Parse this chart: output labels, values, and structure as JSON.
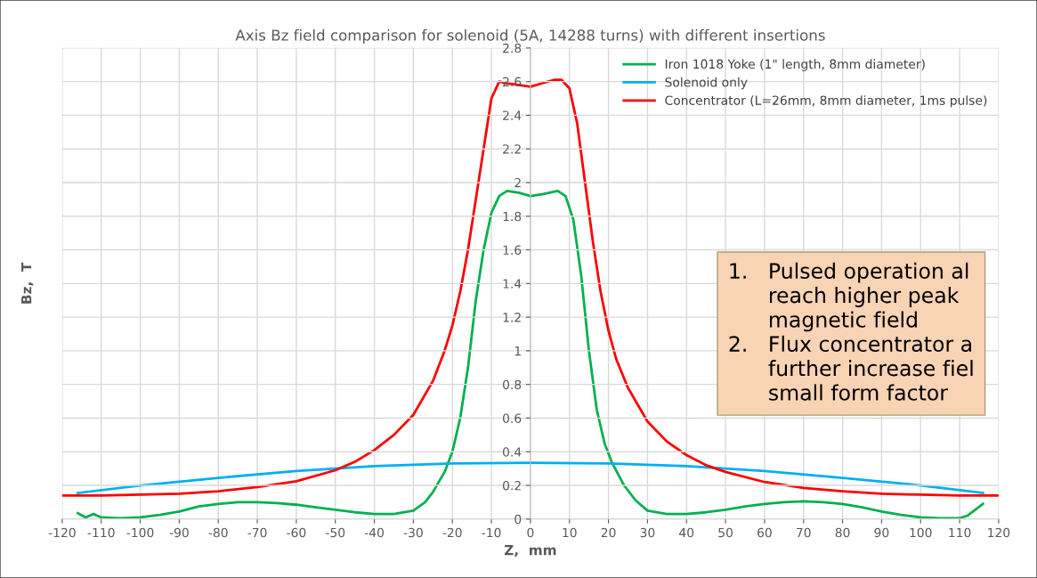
{
  "chart_data": {
    "type": "line",
    "title": "Axis Bz field comparison for solenoid (5A, 14288 turns) with different insertions",
    "xlabel": "Z,  mm",
    "ylabel": "Bz,  T",
    "xlim": [
      -120,
      120
    ],
    "xticks": [
      -120,
      -110,
      -100,
      -90,
      -80,
      -70,
      -60,
      -50,
      -40,
      -30,
      -20,
      -10,
      0,
      10,
      20,
      30,
      40,
      50,
      60,
      70,
      80,
      90,
      100,
      110,
      120
    ],
    "ylim": [
      0,
      2.8
    ],
    "yticks": [
      0,
      0.2,
      0.4,
      0.6,
      0.8,
      1,
      1.2,
      1.4,
      1.6,
      1.8,
      2,
      2.2,
      2.4,
      2.6,
      2.8
    ],
    "grid": true,
    "legend": "top right",
    "marker": "none",
    "line_style": "solid",
    "series": [
      {
        "name": "Iron 1018 Yoke (1\" length, 8mm diameter)",
        "color": "#00b050",
        "x": [
          -116,
          -114,
          -112,
          -110,
          -105,
          -100,
          -95,
          -90,
          -85,
          -80,
          -75,
          -70,
          -65,
          -60,
          -55,
          -50,
          -45,
          -40,
          -35,
          -30,
          -27,
          -25,
          -22,
          -20,
          -18,
          -16,
          -14,
          -12,
          -10,
          -8,
          -6,
          -3,
          0,
          3,
          7,
          9,
          11,
          13,
          15,
          17,
          19,
          21,
          24,
          27,
          30,
          35,
          40,
          45,
          50,
          55,
          60,
          65,
          70,
          75,
          80,
          85,
          90,
          95,
          100,
          105,
          110,
          112,
          114,
          116
        ],
        "values": [
          0.035,
          0.01,
          0.03,
          0.01,
          0.005,
          0.01,
          0.025,
          0.045,
          0.075,
          0.09,
          0.1,
          0.1,
          0.095,
          0.085,
          0.07,
          0.055,
          0.04,
          0.03,
          0.03,
          0.05,
          0.1,
          0.16,
          0.28,
          0.4,
          0.6,
          0.9,
          1.3,
          1.6,
          1.82,
          1.92,
          1.95,
          1.94,
          1.92,
          1.93,
          1.95,
          1.92,
          1.78,
          1.45,
          1.0,
          0.65,
          0.45,
          0.33,
          0.2,
          0.11,
          0.05,
          0.03,
          0.03,
          0.04,
          0.055,
          0.075,
          0.09,
          0.1,
          0.105,
          0.1,
          0.09,
          0.07,
          0.045,
          0.025,
          0.01,
          0.005,
          0.005,
          0.02,
          0.055,
          0.09
        ]
      },
      {
        "name": "Solenoid only",
        "color": "#00b0f0",
        "x": [
          -116,
          -100,
          -80,
          -60,
          -40,
          -20,
          0,
          20,
          40,
          60,
          80,
          100,
          116
        ],
        "values": [
          0.155,
          0.2,
          0.245,
          0.285,
          0.315,
          0.33,
          0.335,
          0.33,
          0.315,
          0.285,
          0.245,
          0.2,
          0.155
        ]
      },
      {
        "name": "Concentrator (L=26mm, 8mm diameter, 1ms pulse)",
        "color": "#ff0000",
        "x": [
          -120,
          -110,
          -100,
          -90,
          -80,
          -70,
          -60,
          -50,
          -45,
          -40,
          -35,
          -30,
          -25,
          -22,
          -20,
          -18,
          -16,
          -14,
          -12,
          -10,
          -8,
          -6,
          -3,
          0,
          3,
          6,
          8,
          10,
          12,
          14,
          16,
          18,
          20,
          22,
          25,
          30,
          35,
          40,
          45,
          50,
          60,
          70,
          80,
          90,
          100,
          110,
          120
        ],
        "values": [
          0.14,
          0.14,
          0.145,
          0.15,
          0.165,
          0.19,
          0.225,
          0.29,
          0.34,
          0.41,
          0.5,
          0.62,
          0.82,
          1.0,
          1.15,
          1.35,
          1.6,
          1.9,
          2.2,
          2.5,
          2.6,
          2.59,
          2.58,
          2.57,
          2.59,
          2.61,
          2.61,
          2.56,
          2.35,
          2.0,
          1.65,
          1.35,
          1.12,
          0.95,
          0.78,
          0.58,
          0.46,
          0.38,
          0.32,
          0.28,
          0.22,
          0.185,
          0.165,
          0.15,
          0.145,
          0.14,
          0.14
        ]
      }
    ],
    "annotations": [
      "1.   Pulsed operation al\n      reach higher peak\n      magnetic field\n2.   Flux concentrator a\n      further increase fiel\n      small form factor"
    ]
  }
}
